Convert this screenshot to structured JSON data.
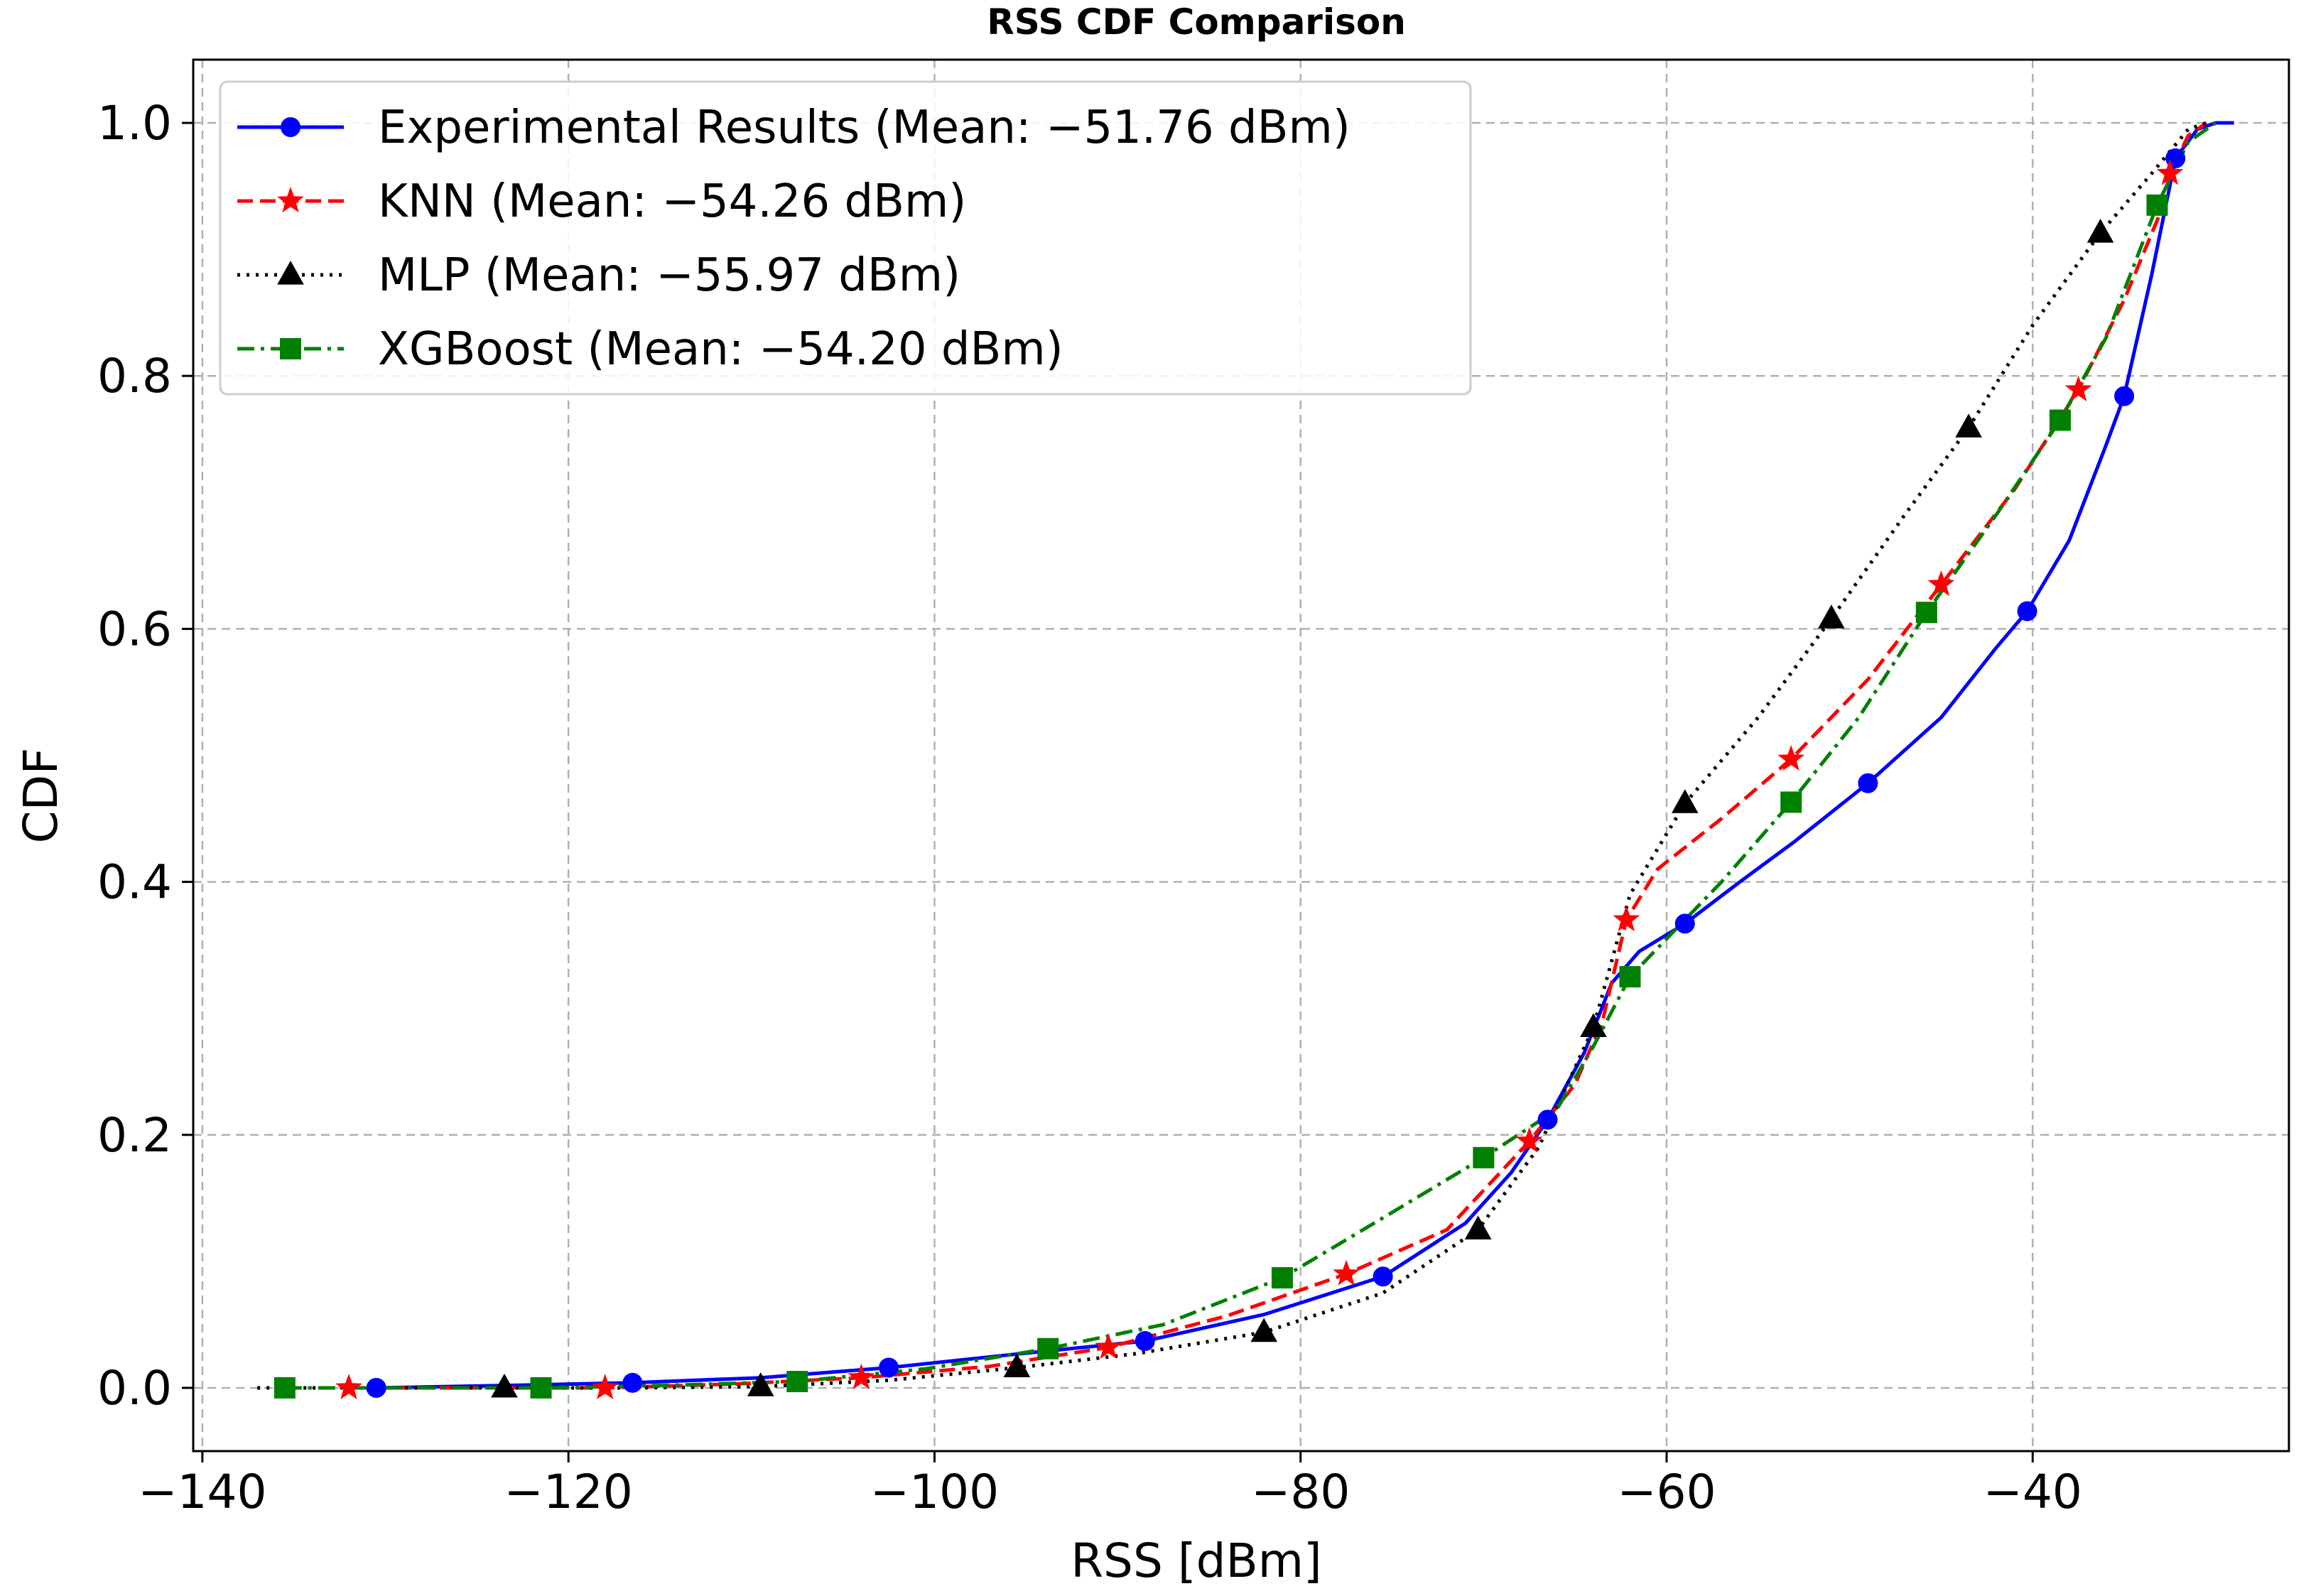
{
  "chart_data": {
    "type": "line",
    "title": "RSS CDF Comparison",
    "xlabel": "RSS [dBm]",
    "ylabel": "CDF",
    "xlim": [
      -140.5,
      -26
    ],
    "ylim": [
      -0.05,
      1.05
    ],
    "xticks": [
      -140,
      -120,
      -100,
      -80,
      -60,
      -40
    ],
    "xtick_labels": [
      "−140",
      "−120",
      "−100",
      "−80",
      "−60",
      "−40"
    ],
    "yticks": [
      0.0,
      0.2,
      0.4,
      0.6,
      0.8,
      1.0
    ],
    "ytick_labels": [
      "0.0",
      "0.2",
      "0.4",
      "0.6",
      "0.8",
      "1.0"
    ],
    "grid": true,
    "legend_position": "upper-left",
    "series": [
      {
        "name": "Experimental Results (Mean: −51.76 dBm)",
        "color": "#0000ff",
        "line_style": "solid",
        "marker": "circle",
        "x": [
          -130.5,
          -123,
          -116.5,
          -109.5,
          -102.5,
          -96,
          -88.5,
          -82,
          -75.5,
          -71,
          -68.5,
          -66.5,
          -64.5,
          -63,
          -61.5,
          -59,
          -56,
          -53,
          -49,
          -45,
          -42,
          -40.3,
          -38,
          -36,
          -35,
          -33.5,
          -32.2,
          -31,
          -30,
          -29
        ],
        "y": [
          0.0,
          0.002,
          0.004,
          0.008,
          0.016,
          0.026,
          0.037,
          0.058,
          0.088,
          0.13,
          0.17,
          0.212,
          0.265,
          0.32,
          0.345,
          0.367,
          0.4,
          0.432,
          0.478,
          0.53,
          0.585,
          0.614,
          0.67,
          0.745,
          0.784,
          0.88,
          0.972,
          0.995,
          1.0,
          1.0
        ],
        "marker_x": [
          -130.5,
          -116.5,
          -102.5,
          -88.5,
          -75.5,
          -66.5,
          -59,
          -49,
          -40.3,
          -35,
          -32.2
        ],
        "marker_y": [
          0.0,
          0.004,
          0.016,
          0.037,
          0.088,
          0.212,
          0.367,
          0.478,
          0.614,
          0.784,
          0.972
        ]
      },
      {
        "name": "KNN (Mean: −54.26 dBm)",
        "color": "#ff0000",
        "line_style": "dashed",
        "marker": "star",
        "x": [
          -132,
          -125,
          -118,
          -111,
          -104,
          -97,
          -90.5,
          -84,
          -77.5,
          -72,
          -67.5,
          -65,
          -63.5,
          -62.2,
          -60.5,
          -57,
          -53.2,
          -49,
          -45,
          -41,
          -37.5,
          -35,
          -33,
          -32.5,
          -31.5,
          -30.5
        ],
        "y": [
          0.0,
          0.0,
          0.0,
          0.003,
          0.008,
          0.017,
          0.032,
          0.057,
          0.09,
          0.125,
          0.195,
          0.24,
          0.29,
          0.37,
          0.41,
          0.45,
          0.497,
          0.56,
          0.635,
          0.71,
          0.789,
          0.86,
          0.93,
          0.96,
          0.99,
          1.0
        ],
        "marker_x": [
          -132,
          -118,
          -104,
          -90.5,
          -77.5,
          -67.5,
          -62.2,
          -53.2,
          -45,
          -37.5,
          -32.5
        ],
        "marker_y": [
          0.0,
          0.0,
          0.008,
          0.032,
          0.09,
          0.195,
          0.37,
          0.497,
          0.635,
          0.789,
          0.96
        ]
      },
      {
        "name": "MLP (Mean: −55.97 dBm)",
        "color": "#000000",
        "line_style": "dotted",
        "marker": "triangle",
        "x": [
          -137,
          -130,
          -123.5,
          -116.5,
          -109.5,
          -102.5,
          -95.5,
          -89,
          -82,
          -75.5,
          -70.3,
          -67,
          -64,
          -62,
          -59,
          -55,
          -51,
          -47,
          -43.5,
          -40,
          -36.3,
          -33.5,
          -31.5,
          -30.5
        ],
        "y": [
          0.0,
          0.0,
          0.0,
          0.0,
          0.001,
          0.006,
          0.016,
          0.027,
          0.044,
          0.075,
          0.125,
          0.19,
          0.285,
          0.39,
          0.462,
          0.53,
          0.608,
          0.69,
          0.759,
          0.84,
          0.913,
          0.96,
          0.995,
          1.0
        ],
        "marker_x": [
          -123.5,
          -109.5,
          -95.5,
          -82,
          -70.3,
          -64,
          -59,
          -51,
          -43.5,
          -36.3
        ],
        "marker_y": [
          0.0,
          0.001,
          0.016,
          0.044,
          0.125,
          0.285,
          0.462,
          0.608,
          0.759,
          0.913
        ]
      },
      {
        "name": "XGBoost (Mean: −54.20 dBm)",
        "color": "#008000",
        "line_style": "dashdot",
        "marker": "square",
        "x": [
          -135.5,
          -128.5,
          -121.5,
          -114.5,
          -107.5,
          -100.5,
          -93.8,
          -87.5,
          -81,
          -76,
          -70,
          -66,
          -64,
          -62,
          -60,
          -57,
          -53.2,
          -49.5,
          -45.8,
          -42,
          -38.5,
          -36,
          -33.2,
          -31.5,
          -30
        ],
        "y": [
          0.0,
          0.0,
          0.0,
          0.002,
          0.005,
          0.015,
          0.031,
          0.05,
          0.087,
          0.13,
          0.182,
          0.22,
          0.27,
          0.325,
          0.355,
          0.4,
          0.463,
          0.53,
          0.613,
          0.69,
          0.765,
          0.83,
          0.935,
          0.985,
          1.0
        ],
        "marker_x": [
          -135.5,
          -121.5,
          -107.5,
          -93.8,
          -81,
          -70,
          -62,
          -53.2,
          -45.8,
          -38.5,
          -33.2
        ],
        "marker_y": [
          0.0,
          0.0,
          0.005,
          0.031,
          0.087,
          0.182,
          0.325,
          0.463,
          0.613,
          0.765,
          0.935
        ]
      }
    ]
  }
}
